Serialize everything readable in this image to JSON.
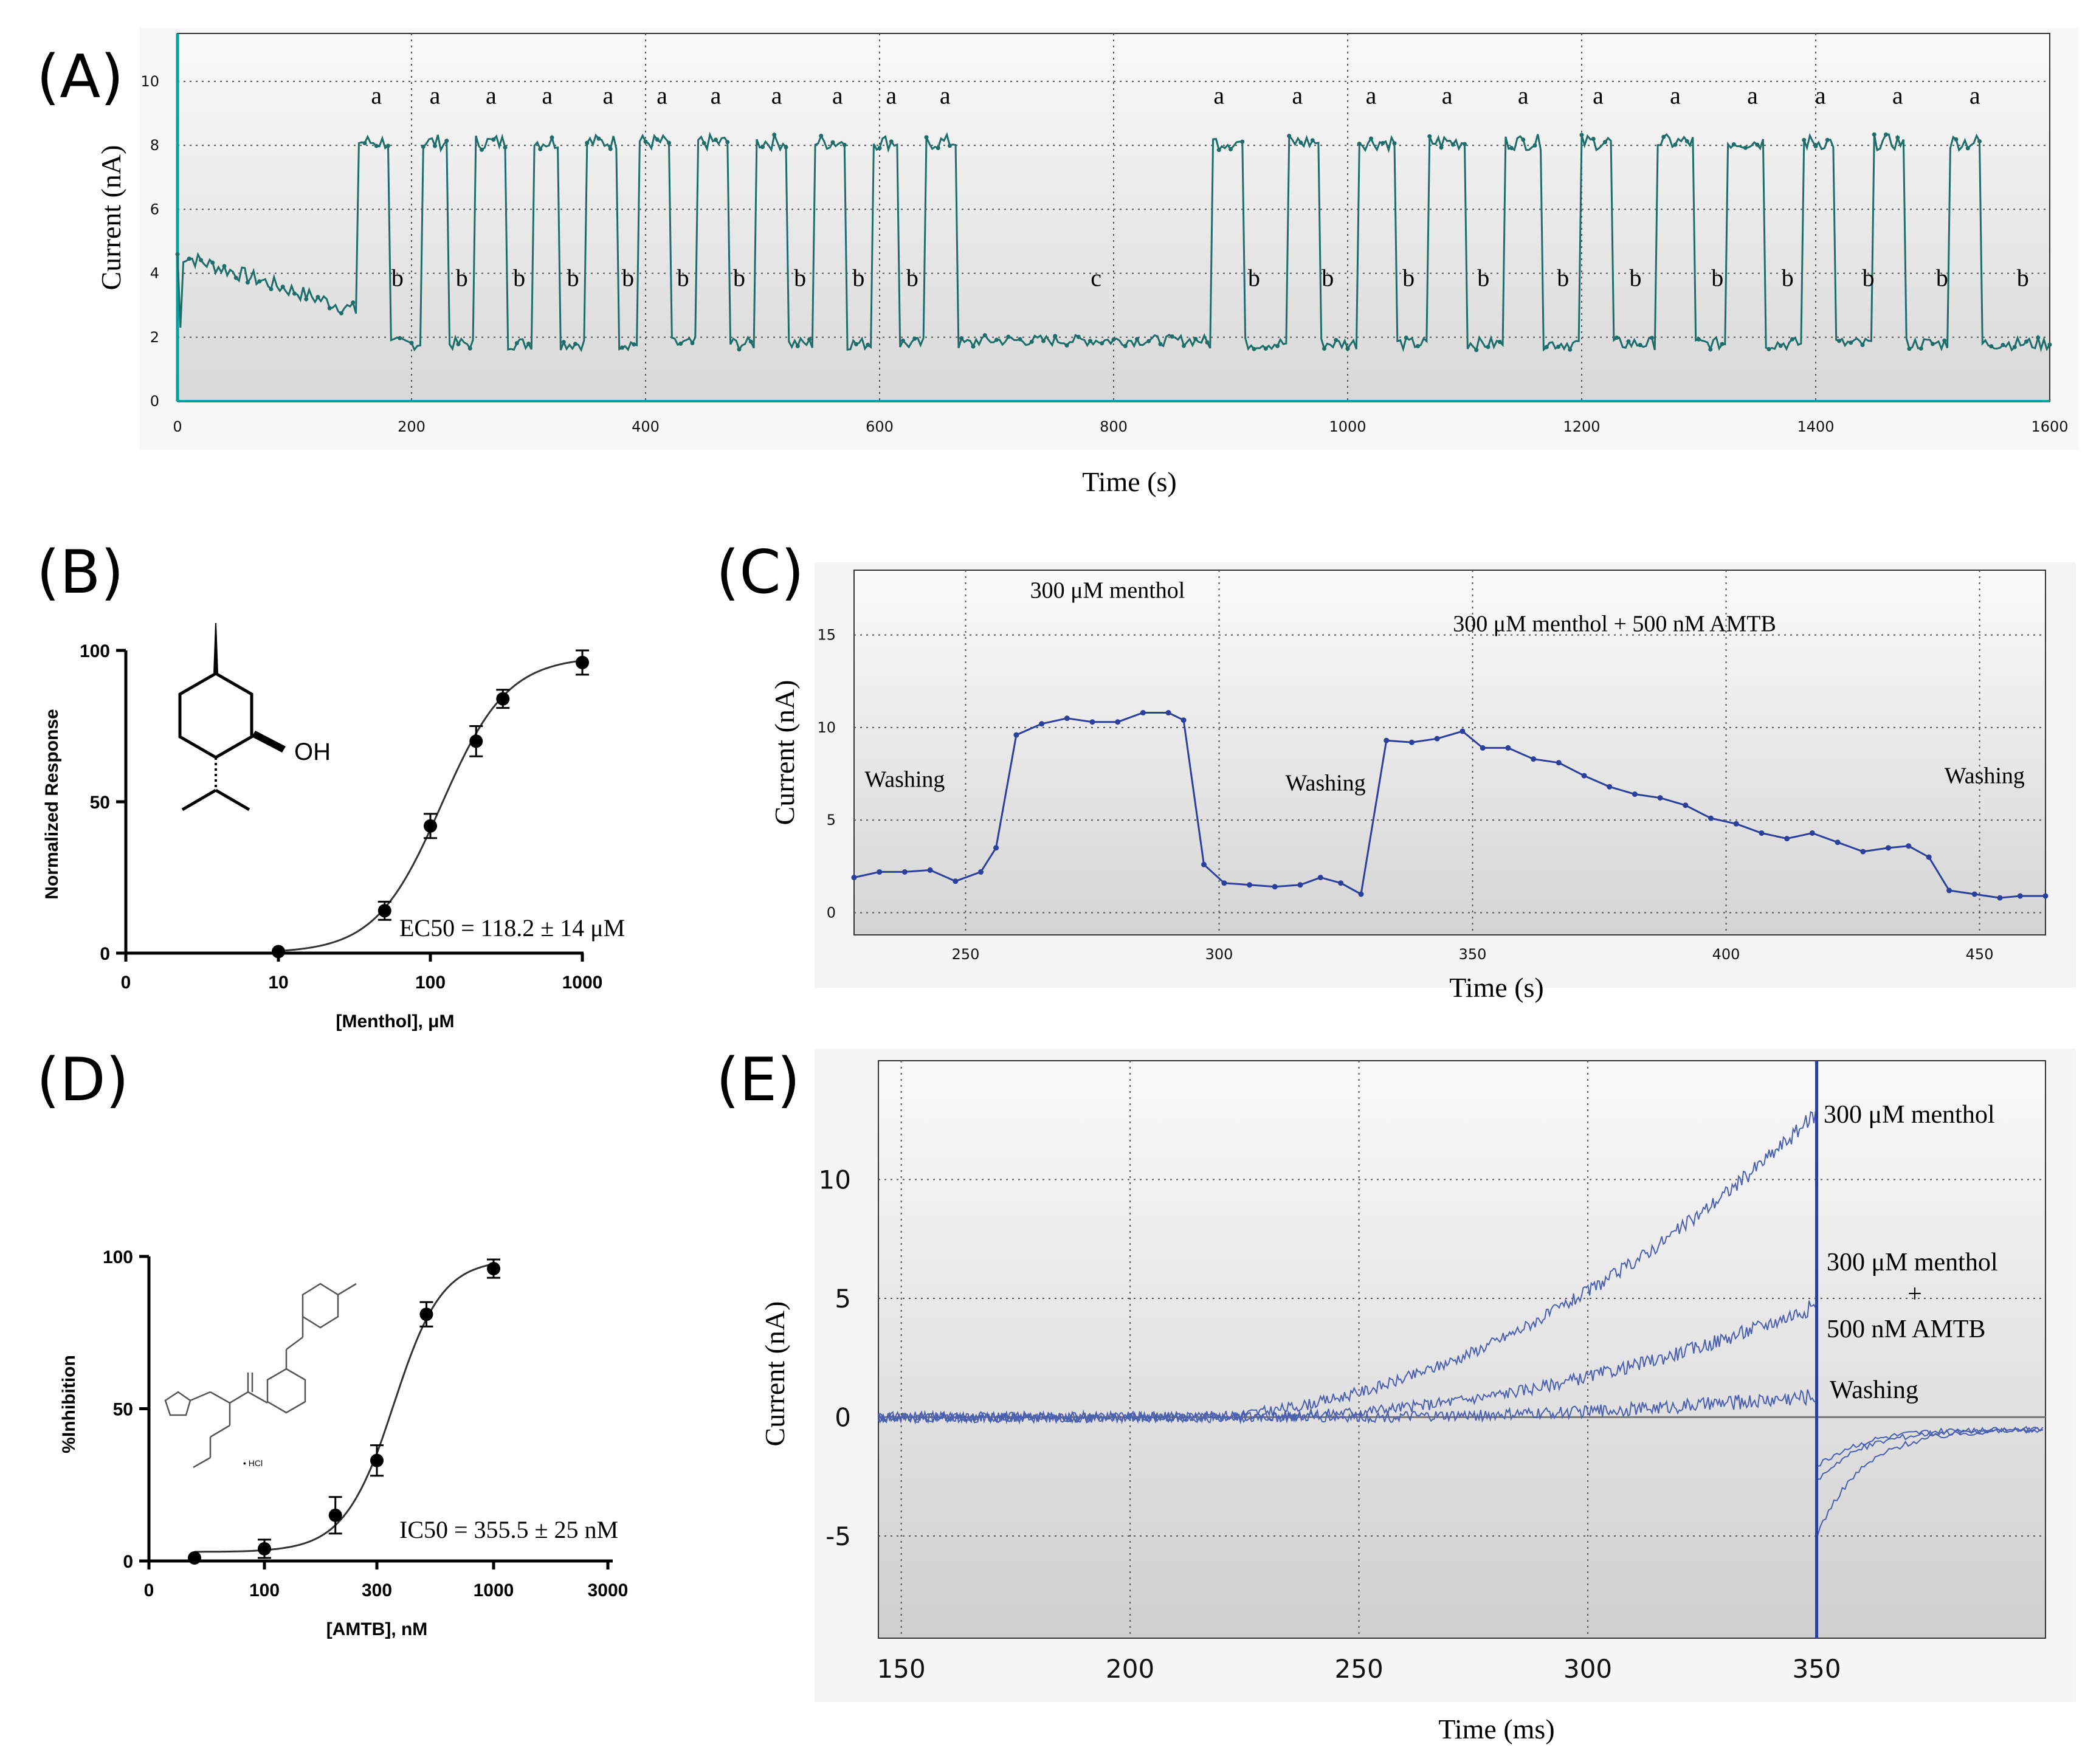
{
  "figure": {
    "panel_labels": [
      "(A)",
      "(B)",
      "(C)",
      "(D)",
      "(E)"
    ]
  },
  "colors": {
    "teal_trace": "#1d6e6a",
    "teal_axis": "#00a0a0",
    "blue_trace": "#2b3f9c",
    "blue_trace_light": "#4a5fb0",
    "black": "#111111"
  },
  "chart_data": [
    {
      "id": "A",
      "type": "line",
      "title": "",
      "xlabel": "Time (s)",
      "ylabel": "Current (nA)",
      "xlim": [
        0,
        1600
      ],
      "ylim": [
        0,
        11.5
      ],
      "xticks": [
        "0",
        "200",
        "400",
        "600",
        "800",
        "1000",
        "1200",
        "1400",
        "1600"
      ],
      "yticks": [
        "0",
        "2",
        "4",
        "6",
        "8",
        "10"
      ],
      "baseline_start": 4.6,
      "baseline_mid": 1.9,
      "low_level": 1.8,
      "high_level": 8.1,
      "pulses_s": [
        [
          155,
          180
        ],
        [
          210,
          230
        ],
        [
          255,
          280
        ],
        [
          305,
          325
        ],
        [
          350,
          375
        ],
        [
          395,
          420
        ],
        [
          445,
          470
        ],
        [
          495,
          520
        ],
        [
          545,
          570
        ],
        [
          595,
          615
        ],
        [
          640,
          665
        ],
        [
          885,
          910
        ],
        [
          950,
          975
        ],
        [
          1010,
          1040
        ],
        [
          1070,
          1100
        ],
        [
          1135,
          1165
        ],
        [
          1200,
          1225
        ],
        [
          1265,
          1295
        ],
        [
          1325,
          1355
        ],
        [
          1390,
          1415
        ],
        [
          1450,
          1475
        ],
        [
          1515,
          1540
        ]
      ],
      "annotations": [
        {
          "text": "a",
          "x": 170,
          "y": 9.3
        },
        {
          "text": "a",
          "x": 220,
          "y": 9.3
        },
        {
          "text": "a",
          "x": 268,
          "y": 9.3
        },
        {
          "text": "a",
          "x": 316,
          "y": 9.3
        },
        {
          "text": "a",
          "x": 368,
          "y": 9.3
        },
        {
          "text": "a",
          "x": 414,
          "y": 9.3
        },
        {
          "text": "a",
          "x": 460,
          "y": 9.3
        },
        {
          "text": "a",
          "x": 512,
          "y": 9.3
        },
        {
          "text": "a",
          "x": 564,
          "y": 9.3
        },
        {
          "text": "a",
          "x": 610,
          "y": 9.3
        },
        {
          "text": "a",
          "x": 656,
          "y": 9.3
        },
        {
          "text": "a",
          "x": 890,
          "y": 9.3
        },
        {
          "text": "a",
          "x": 957,
          "y": 9.3
        },
        {
          "text": "a",
          "x": 1020,
          "y": 9.3
        },
        {
          "text": "a",
          "x": 1085,
          "y": 9.3
        },
        {
          "text": "a",
          "x": 1150,
          "y": 9.3
        },
        {
          "text": "a",
          "x": 1214,
          "y": 9.3
        },
        {
          "text": "a",
          "x": 1280,
          "y": 9.3
        },
        {
          "text": "a",
          "x": 1346,
          "y": 9.3
        },
        {
          "text": "a",
          "x": 1404,
          "y": 9.3
        },
        {
          "text": "a",
          "x": 1470,
          "y": 9.3
        },
        {
          "text": "a",
          "x": 1536,
          "y": 9.3
        },
        {
          "text": "b",
          "x": 188,
          "y": 3.6
        },
        {
          "text": "b",
          "x": 243,
          "y": 3.6
        },
        {
          "text": "b",
          "x": 292,
          "y": 3.6
        },
        {
          "text": "b",
          "x": 338,
          "y": 3.6
        },
        {
          "text": "b",
          "x": 385,
          "y": 3.6
        },
        {
          "text": "b",
          "x": 432,
          "y": 3.6
        },
        {
          "text": "b",
          "x": 480,
          "y": 3.6
        },
        {
          "text": "b",
          "x": 532,
          "y": 3.6
        },
        {
          "text": "b",
          "x": 582,
          "y": 3.6
        },
        {
          "text": "b",
          "x": 628,
          "y": 3.6
        },
        {
          "text": "c",
          "x": 785,
          "y": 3.6
        },
        {
          "text": "b",
          "x": 920,
          "y": 3.6
        },
        {
          "text": "b",
          "x": 983,
          "y": 3.6
        },
        {
          "text": "b",
          "x": 1052,
          "y": 3.6
        },
        {
          "text": "b",
          "x": 1116,
          "y": 3.6
        },
        {
          "text": "b",
          "x": 1184,
          "y": 3.6
        },
        {
          "text": "b",
          "x": 1246,
          "y": 3.6
        },
        {
          "text": "b",
          "x": 1316,
          "y": 3.6
        },
        {
          "text": "b",
          "x": 1376,
          "y": 3.6
        },
        {
          "text": "b",
          "x": 1445,
          "y": 3.6
        },
        {
          "text": "b",
          "x": 1508,
          "y": 3.6
        },
        {
          "text": "b",
          "x": 1577,
          "y": 3.6
        }
      ]
    },
    {
      "id": "B",
      "type": "scatter",
      "xlabel": "[Menthol], μM",
      "ylabel": "Normalized Response",
      "xscale": "log",
      "xticks": [
        "0",
        "10",
        "100",
        "1000"
      ],
      "yticks": [
        "0",
        "50",
        "100"
      ],
      "ylim": [
        0,
        100
      ],
      "points": [
        {
          "x": 10,
          "y": 0.5,
          "err": 0
        },
        {
          "x": 50,
          "y": 14,
          "err": 3
        },
        {
          "x": 100,
          "y": 42,
          "err": 4
        },
        {
          "x": 200,
          "y": 70,
          "err": 5
        },
        {
          "x": 300,
          "y": 84,
          "err": 3
        },
        {
          "x": 1000,
          "y": 96,
          "err": 4
        }
      ],
      "fit": {
        "type": "hill",
        "ec50": 118.2,
        "hill": 2.0,
        "top": 98,
        "bottom": 0
      },
      "annotation": "EC50 = 118.2 ± 14 μM",
      "inset": "menthol structure",
      "inset_label": "OH"
    },
    {
      "id": "C",
      "type": "line",
      "xlabel": "Time (s)",
      "ylabel": "Current (nA)",
      "xlim": [
        228,
        463
      ],
      "ylim": [
        -1.2,
        18.5
      ],
      "xticks": [
        "250",
        "300",
        "350",
        "400",
        "450"
      ],
      "yticks": [
        "0",
        "5",
        "10",
        "15"
      ],
      "points": [
        [
          228,
          1.9
        ],
        [
          233,
          2.2
        ],
        [
          238,
          2.2
        ],
        [
          243,
          2.3
        ],
        [
          248,
          1.7
        ],
        [
          253,
          2.2
        ],
        [
          256,
          3.5
        ],
        [
          260,
          9.6
        ],
        [
          265,
          10.2
        ],
        [
          270,
          10.5
        ],
        [
          275,
          10.3
        ],
        [
          280,
          10.3
        ],
        [
          285,
          10.8
        ],
        [
          290,
          10.8
        ],
        [
          293,
          10.4
        ],
        [
          297,
          2.6
        ],
        [
          301,
          1.6
        ],
        [
          306,
          1.5
        ],
        [
          311,
          1.4
        ],
        [
          316,
          1.5
        ],
        [
          320,
          1.9
        ],
        [
          324,
          1.6
        ],
        [
          328,
          1.0
        ],
        [
          333,
          9.3
        ],
        [
          338,
          9.2
        ],
        [
          343,
          9.4
        ],
        [
          348,
          9.8
        ],
        [
          352,
          8.9
        ],
        [
          357,
          8.9
        ],
        [
          362,
          8.3
        ],
        [
          367,
          8.1
        ],
        [
          372,
          7.4
        ],
        [
          377,
          6.8
        ],
        [
          382,
          6.4
        ],
        [
          387,
          6.2
        ],
        [
          392,
          5.8
        ],
        [
          397,
          5.1
        ],
        [
          402,
          4.8
        ],
        [
          407,
          4.3
        ],
        [
          412,
          4.0
        ],
        [
          417,
          4.3
        ],
        [
          422,
          3.8
        ],
        [
          427,
          3.3
        ],
        [
          432,
          3.5
        ],
        [
          436,
          3.6
        ],
        [
          440,
          3.0
        ],
        [
          444,
          1.2
        ],
        [
          449,
          1.0
        ],
        [
          454,
          0.8
        ],
        [
          458,
          0.9
        ],
        [
          463,
          0.9
        ]
      ],
      "annotations": [
        {
          "text": "Washing",
          "x": 238,
          "y": 6.8
        },
        {
          "text": "300 μM menthol",
          "x": 278,
          "y": 17.0
        },
        {
          "text": "Washing",
          "x": 321,
          "y": 6.6
        },
        {
          "text": "300 μM menthol + 500 nM AMTB",
          "x": 378,
          "y": 15.2
        },
        {
          "text": "Washing",
          "x": 451,
          "y": 7.0
        }
      ]
    },
    {
      "id": "D",
      "type": "scatter",
      "xlabel": "[AMTB], nM",
      "ylabel": "%Inhibition",
      "xscale": "log",
      "xticks": [
        "0",
        "100",
        "300",
        "1000",
        "3000"
      ],
      "yticks": [
        "0",
        "50",
        "100"
      ],
      "ylim": [
        0,
        100
      ],
      "points": [
        {
          "x": 40,
          "y": 1,
          "err": 0
        },
        {
          "x": 100,
          "y": 4,
          "err": 3
        },
        {
          "x": 200,
          "y": 15,
          "err": 6
        },
        {
          "x": 300,
          "y": 33,
          "err": 5
        },
        {
          "x": 500,
          "y": 81,
          "err": 4
        },
        {
          "x": 1000,
          "y": 96,
          "err": 3
        }
      ],
      "fit": {
        "type": "hill",
        "ec50": 355.5,
        "hill": 4.0,
        "top": 99,
        "bottom": 3
      },
      "annotation": "IC50 = 355.5 ± 25 nM",
      "inset": "AMTB structure",
      "inset_label": "• HCl"
    },
    {
      "id": "E",
      "type": "line",
      "xlabel": "Time (ms)",
      "ylabel": "Current (nA)",
      "xlim": [
        145,
        400
      ],
      "ylim": [
        -9.3,
        15
      ],
      "xticks": [
        "150",
        "200",
        "250",
        "300",
        "350"
      ],
      "yticks": [
        "-5",
        "0",
        "5",
        "10"
      ],
      "step_time": 350,
      "series": [
        {
          "name": "300 μM menthol",
          "end_value": 12.8,
          "onset": 210,
          "power": 2.0,
          "tail_start": -2.2
        },
        {
          "name": "300 μM menthol + 500 nM AMTB",
          "end_value": 4.7,
          "onset": 215,
          "power": 2.2,
          "tail_start": -4.5
        },
        {
          "name": "Washing",
          "end_value": 0.9,
          "onset": 245,
          "power": 2.0,
          "tail_start": -1.6
        }
      ],
      "annotations": [
        {
          "text": "300 μM menthol"
        },
        {
          "text": "300 μM menthol"
        },
        {
          "text": "+"
        },
        {
          "text": "500 nM AMTB"
        },
        {
          "text": "Washing"
        }
      ]
    }
  ]
}
